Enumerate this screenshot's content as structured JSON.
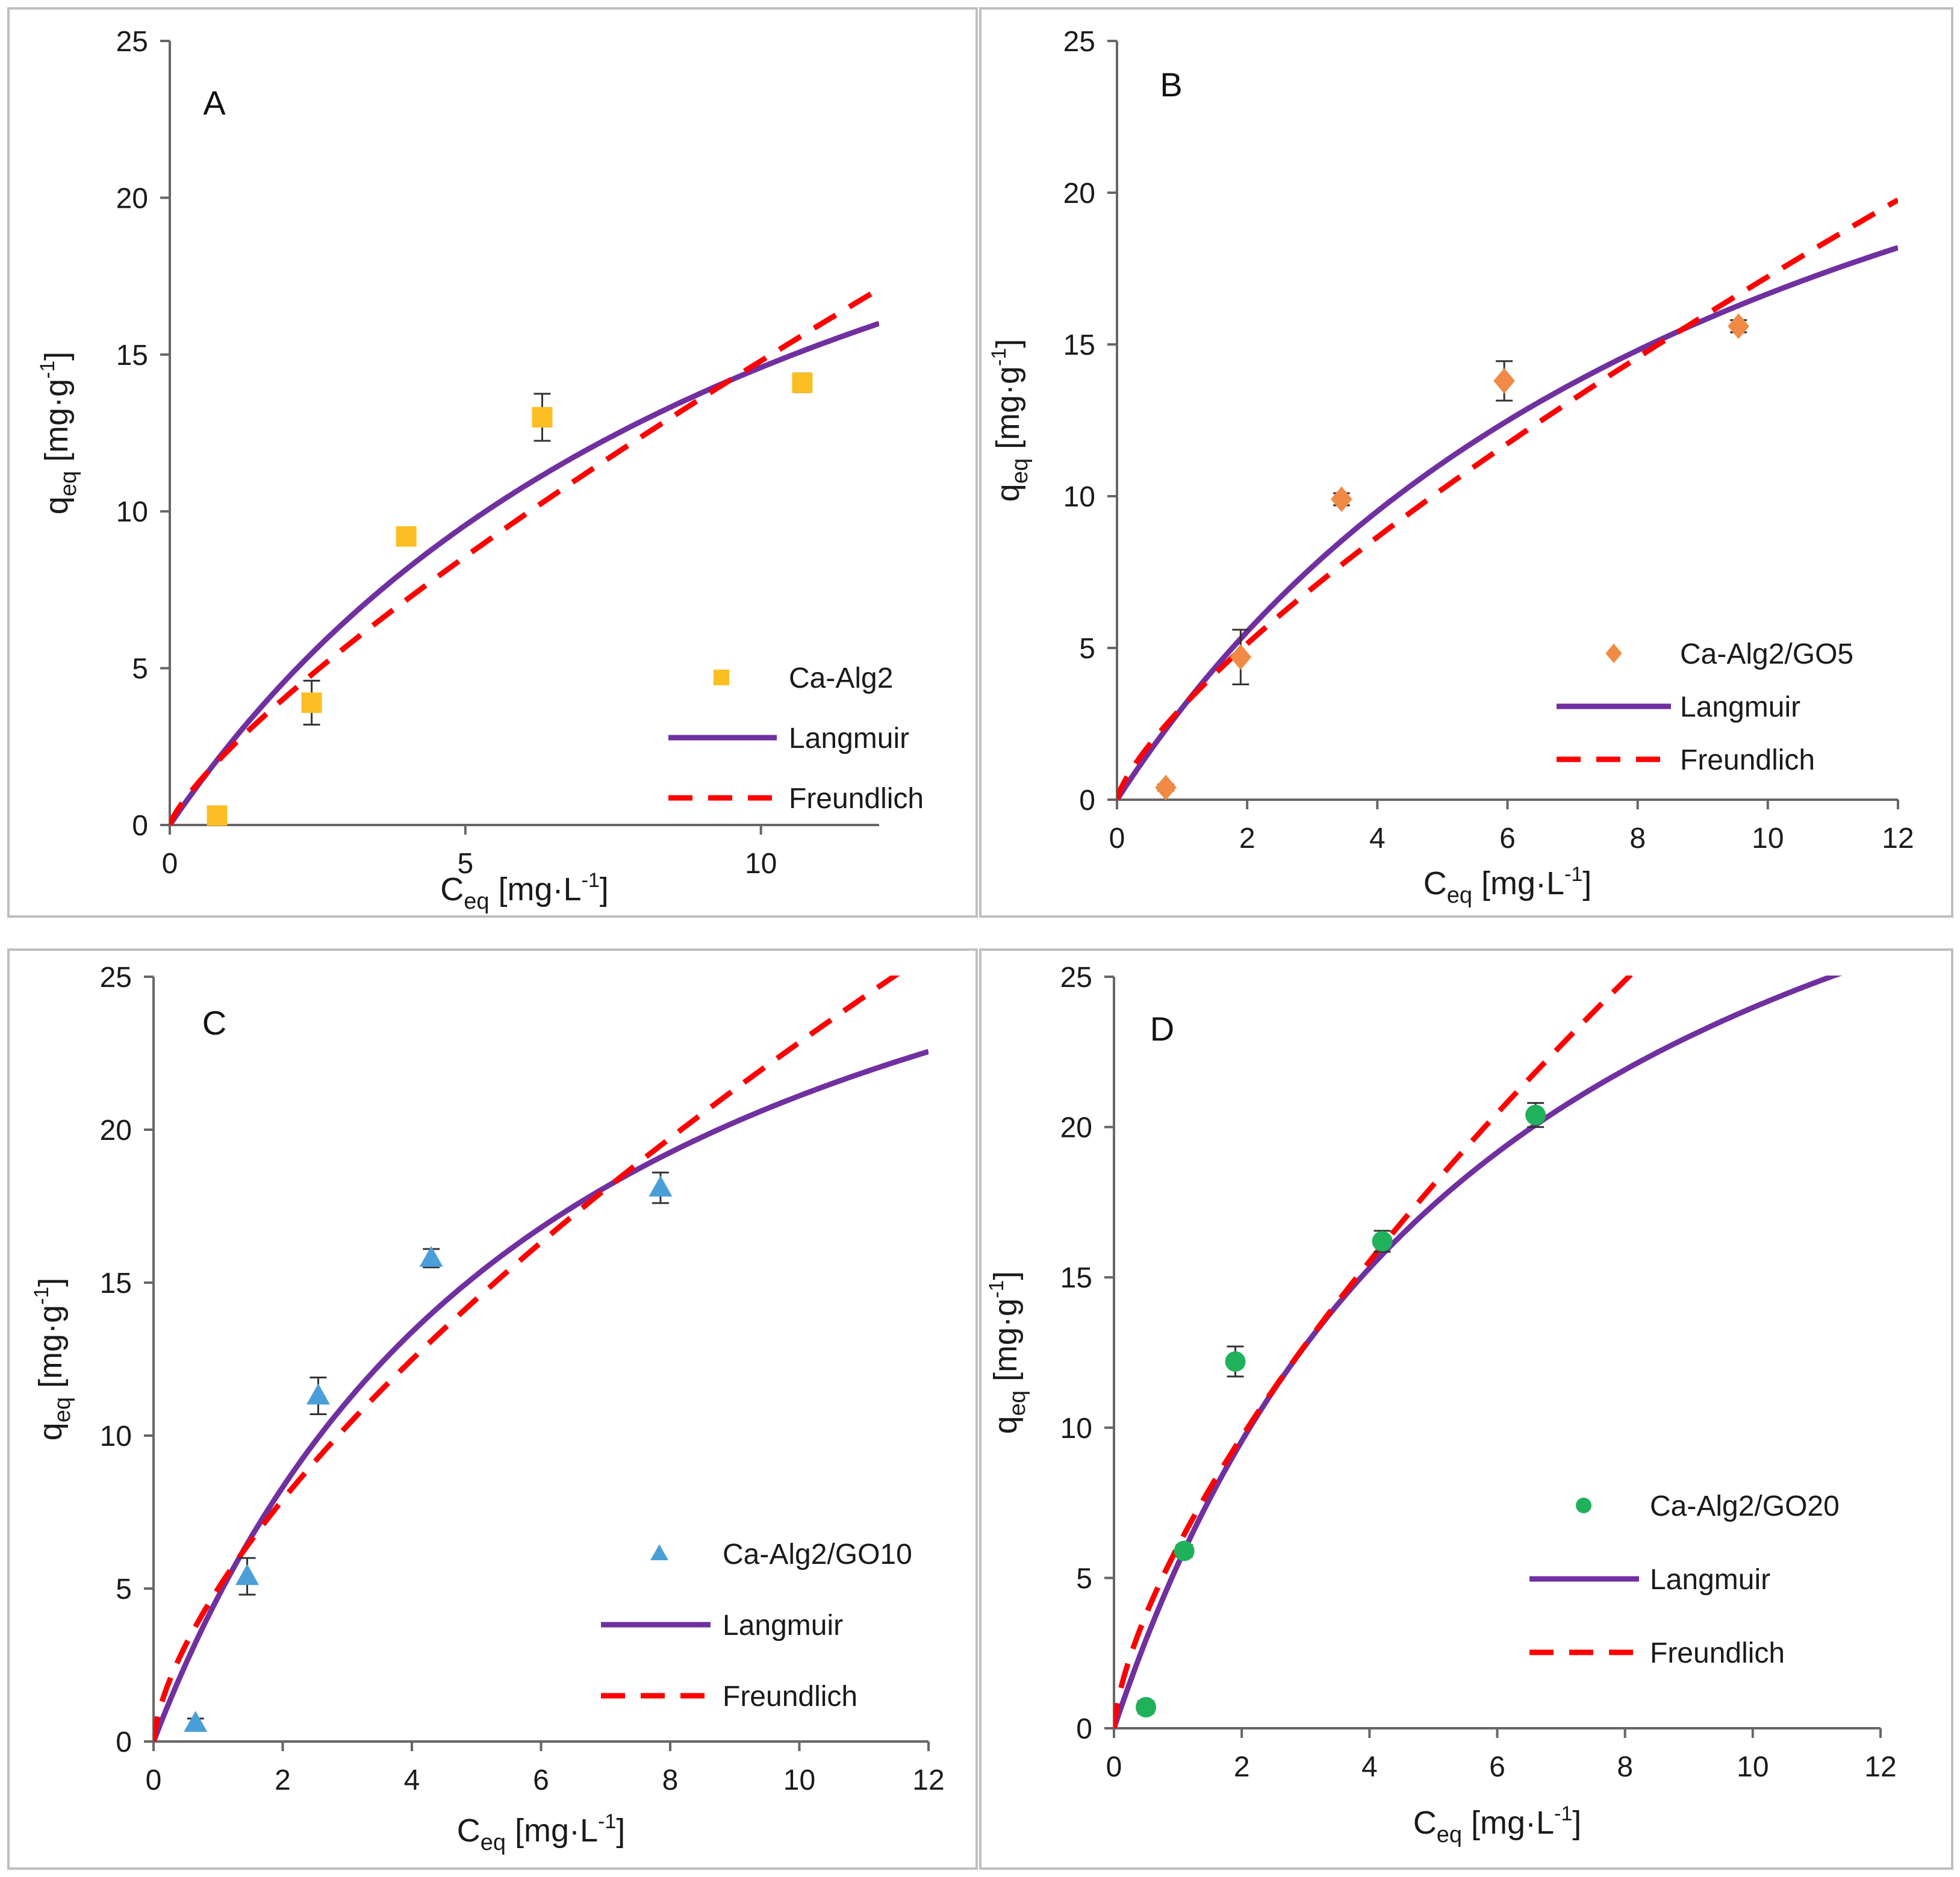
{
  "colors": {
    "langmuir": "#7030a0",
    "freundlich": "#ff0000",
    "A": "#fbbf24",
    "B": "#f08a45",
    "C": "#4a9fd9",
    "D": "#1fb25a",
    "axis": "#666666",
    "frame": "#bfbfbf"
  },
  "chart_data": [
    {
      "type": "scatter",
      "panel": "A",
      "xlabel": "Ceq [mg·L-1]",
      "ylabel": "qeq [mg·g-1]",
      "xlabel_parts": {
        "main": "C",
        "sub": "eq",
        "unit_open": " [mg·L",
        "sup": "-1",
        "unit_close": "]"
      },
      "ylabel_parts": {
        "main": "q",
        "sub": "eq",
        "unit_open": " [mg·g",
        "sup": "-1",
        "unit_close": "]"
      },
      "xlim": [
        0,
        12
      ],
      "ylim": [
        0,
        25
      ],
      "xticks": [
        0,
        5,
        10
      ],
      "yticks": [
        0,
        5,
        10,
        15,
        20,
        25
      ],
      "marker": "square",
      "series": [
        {
          "name": "Ca-Alg2",
          "kind": "points",
          "points": [
            {
              "x": 0.8,
              "y": 0.3,
              "err": 0.1
            },
            {
              "x": 2.4,
              "y": 3.9,
              "err": 0.7
            },
            {
              "x": 4.0,
              "y": 9.2,
              "err": 0.2
            },
            {
              "x": 6.3,
              "y": 13.0,
              "err": 0.75
            },
            {
              "x": 10.7,
              "y": 14.1,
              "err": 0.3
            }
          ]
        },
        {
          "name": "Langmuir",
          "kind": "langmuir",
          "qmax": 30.8,
          "KL": 0.09
        },
        {
          "name": "Freundlich",
          "kind": "freundlich",
          "KF": 2.4,
          "n": 0.79
        }
      ],
      "legend_position": "bottom-right"
    },
    {
      "type": "scatter",
      "panel": "B",
      "xlabel": "Ceq [mg·L-1]",
      "ylabel": "qeq [mg·g-1]",
      "xlabel_parts": {
        "main": "C",
        "sub": "eq",
        "unit_open": " [mg·L",
        "sup": "-1",
        "unit_close": "]"
      },
      "ylabel_parts": {
        "main": "q",
        "sub": "eq",
        "unit_open": " [mg·g",
        "sup": "-1",
        "unit_close": "]"
      },
      "xlim": [
        0,
        12
      ],
      "ylim": [
        0,
        25
      ],
      "xticks": [
        0,
        2,
        4,
        6,
        8,
        10,
        12
      ],
      "yticks": [
        0,
        5,
        10,
        15,
        20,
        25
      ],
      "marker": "diamond",
      "series": [
        {
          "name": "Ca-Alg2/GO5",
          "kind": "points",
          "points": [
            {
              "x": 0.75,
              "y": 0.4,
              "err": 0.1
            },
            {
              "x": 1.9,
              "y": 4.7,
              "err": 0.9
            },
            {
              "x": 3.45,
              "y": 9.9,
              "err": 0.2
            },
            {
              "x": 5.95,
              "y": 13.8,
              "err": 0.65
            },
            {
              "x": 9.55,
              "y": 15.6,
              "err": 0.2
            }
          ]
        },
        {
          "name": "Langmuir",
          "kind": "langmuir",
          "qmax": 33.5,
          "KL": 0.099
        },
        {
          "name": "Freundlich",
          "kind": "freundlich",
          "KF": 3.05,
          "n": 0.752
        }
      ],
      "legend_position": "bottom-right"
    },
    {
      "type": "scatter",
      "panel": "C",
      "xlabel": "Ceq [mg·L-1]",
      "ylabel": "qeq [mg·g-1]",
      "xlabel_parts": {
        "main": "C",
        "sub": "eq",
        "unit_open": " [mg·L",
        "sup": "-1",
        "unit_close": "]"
      },
      "ylabel_parts": {
        "main": "q",
        "sub": "eq",
        "unit_open": " [mg·g",
        "sup": "-1",
        "unit_close": "]"
      },
      "xlim": [
        0,
        12
      ],
      "ylim": [
        0,
        25
      ],
      "xticks": [
        0,
        2,
        4,
        6,
        8,
        10,
        12
      ],
      "yticks": [
        0,
        5,
        10,
        15,
        20,
        25
      ],
      "marker": "triangle",
      "series": [
        {
          "name": "Ca-Alg2/GO10",
          "kind": "points",
          "points": [
            {
              "x": 0.65,
              "y": 0.6,
              "err": 0.15
            },
            {
              "x": 1.45,
              "y": 5.4,
              "err": 0.6
            },
            {
              "x": 2.55,
              "y": 11.3,
              "err": 0.6
            },
            {
              "x": 4.3,
              "y": 15.8,
              "err": 0.3
            },
            {
              "x": 7.85,
              "y": 18.1,
              "err": 0.5
            }
          ]
        },
        {
          "name": "Langmuir",
          "kind": "langmuir",
          "qmax": 34.3,
          "KL": 0.16
        },
        {
          "name": "Freundlich",
          "kind": "freundlich",
          "KF": 5.0,
          "n": 0.66
        }
      ],
      "legend_position": "bottom-right"
    },
    {
      "type": "scatter",
      "panel": "D",
      "xlabel": "Ceq [mg·L-1]",
      "ylabel": "qeq [mg·g-1]",
      "xlabel_parts": {
        "main": "C",
        "sub": "eq",
        "unit_open": " [mg·L",
        "sup": "-1",
        "unit_close": "]"
      },
      "ylabel_parts": {
        "main": "q",
        "sub": "eq",
        "unit_open": " [mg·g",
        "sup": "-1",
        "unit_close": "]"
      },
      "xlim": [
        0,
        12
      ],
      "ylim": [
        0,
        25
      ],
      "xticks": [
        0,
        2,
        4,
        6,
        8,
        10,
        12
      ],
      "yticks": [
        0,
        5,
        10,
        15,
        20,
        25
      ],
      "marker": "circle",
      "series": [
        {
          "name": "Ca-Alg2/GO20",
          "kind": "points",
          "points": [
            {
              "x": 0.5,
              "y": 0.7,
              "err": 0.2
            },
            {
              "x": 1.1,
              "y": 5.9,
              "err": 0.2
            },
            {
              "x": 1.9,
              "y": 12.2,
              "err": 0.5
            },
            {
              "x": 4.2,
              "y": 16.2,
              "err": 0.35
            },
            {
              "x": 6.6,
              "y": 20.4,
              "err": 0.4
            }
          ]
        },
        {
          "name": "Langmuir",
          "kind": "langmuir",
          "qmax": 38.5,
          "KL": 0.165
        },
        {
          "name": "Freundlich",
          "kind": "freundlich",
          "KF": 6.05,
          "n": 0.68
        }
      ],
      "legend_position": "bottom-right"
    }
  ]
}
